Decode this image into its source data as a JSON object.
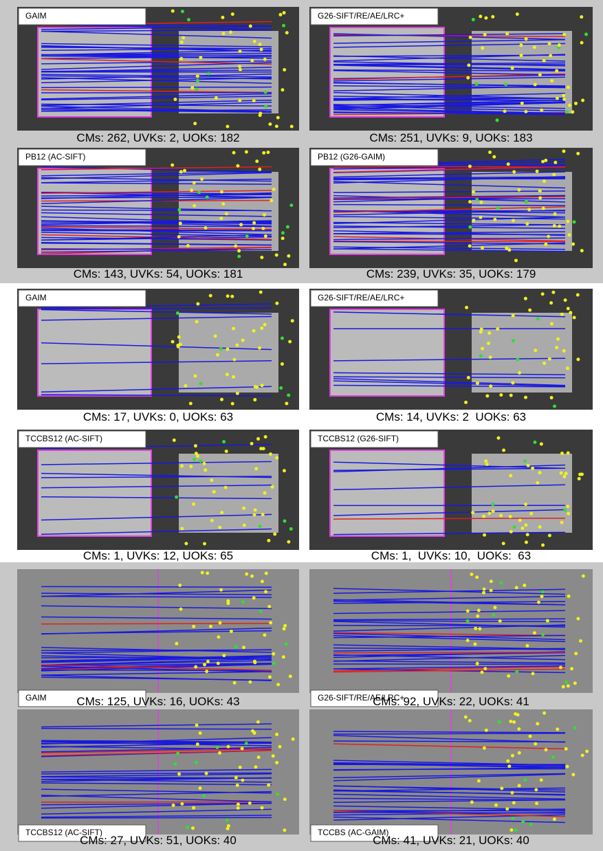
{
  "panels": [
    {
      "label": "GAIM",
      "caption": "CMs: 262, UVKs: 2, UOKs: 182"
    },
    {
      "label": "G26-SIFT/RE/AE/LRC+",
      "caption": "CMs: 251, UVKs: 9, UOKs: 183"
    },
    {
      "label": "PB12 (AC-SIFT)",
      "caption": "CMs: 143, UVKs: 54, UOKs: 181"
    },
    {
      "label": "PB12 (G26-GAIM)",
      "caption": "CMs: 239, UVKs: 35, UOKs: 179"
    },
    {
      "label": "GAIM",
      "caption": "CMs: 17, UVKs: 0, UOKs: 63"
    },
    {
      "label": "G26-SIFT/RE/AE/LRC+",
      "caption": "CMs: 14, UVKs: 2  UOKs: 63"
    },
    {
      "label": "TCCBS12 (AC-SIFT)",
      "caption": "CMs: 1, UVKs: 12, UOKs: 65"
    },
    {
      "label": "TCCBS12 (G26-SIFT)",
      "caption": "CMs: 1,  UVKs: 10,  UOKs:  63"
    },
    {
      "label": "GAIM",
      "caption": "CMs: 125, UVKs: 16, UOKs: 43"
    },
    {
      "label": "G26-SIFT/RE/AE/LRC+",
      "caption": "CMs: 92, UVKs: 22, UOKs: 41"
    },
    {
      "label": "TCCBS12 (AC-SIFT)",
      "caption": "CMs: 27, UVKs: 51, UOKs: 40"
    },
    {
      "label": "TCCBS (AC-GAIM)",
      "caption": "CMs: 41, UVKs: 21, UOKs: 40"
    }
  ]
}
